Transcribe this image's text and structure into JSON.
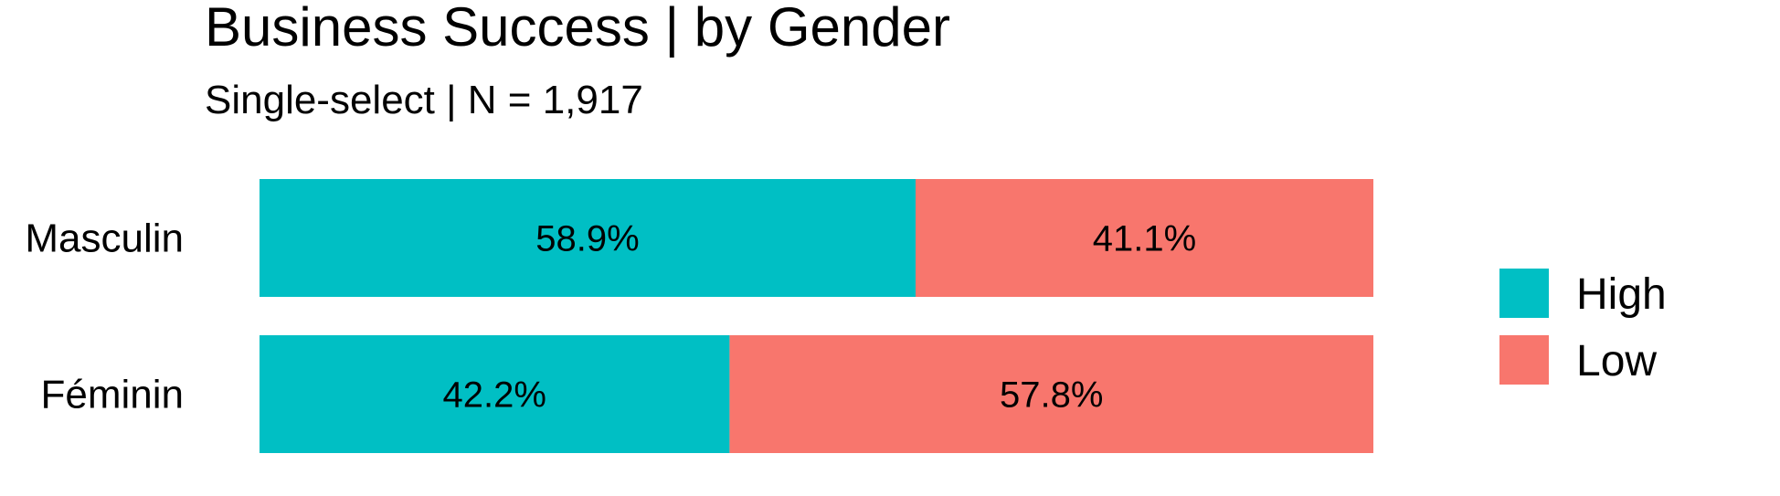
{
  "chart_data": {
    "type": "bar",
    "orientation": "horizontal",
    "stacked": true,
    "title": "Business Success | by Gender",
    "subtitle": "Single-select | N = 1,917",
    "categories": [
      "Masculin",
      "Féminin"
    ],
    "series": [
      {
        "name": "High",
        "values": [
          58.9,
          42.2
        ],
        "labels": [
          "58.9%",
          "42.2%"
        ],
        "color": "#00BFC4"
      },
      {
        "name": "Low",
        "values": [
          41.1,
          57.8
        ],
        "labels": [
          "41.1%",
          "57.8%"
        ],
        "color": "#F8766D"
      }
    ],
    "xlim": [
      0,
      100
    ],
    "grid": false,
    "legend_position": "right"
  }
}
